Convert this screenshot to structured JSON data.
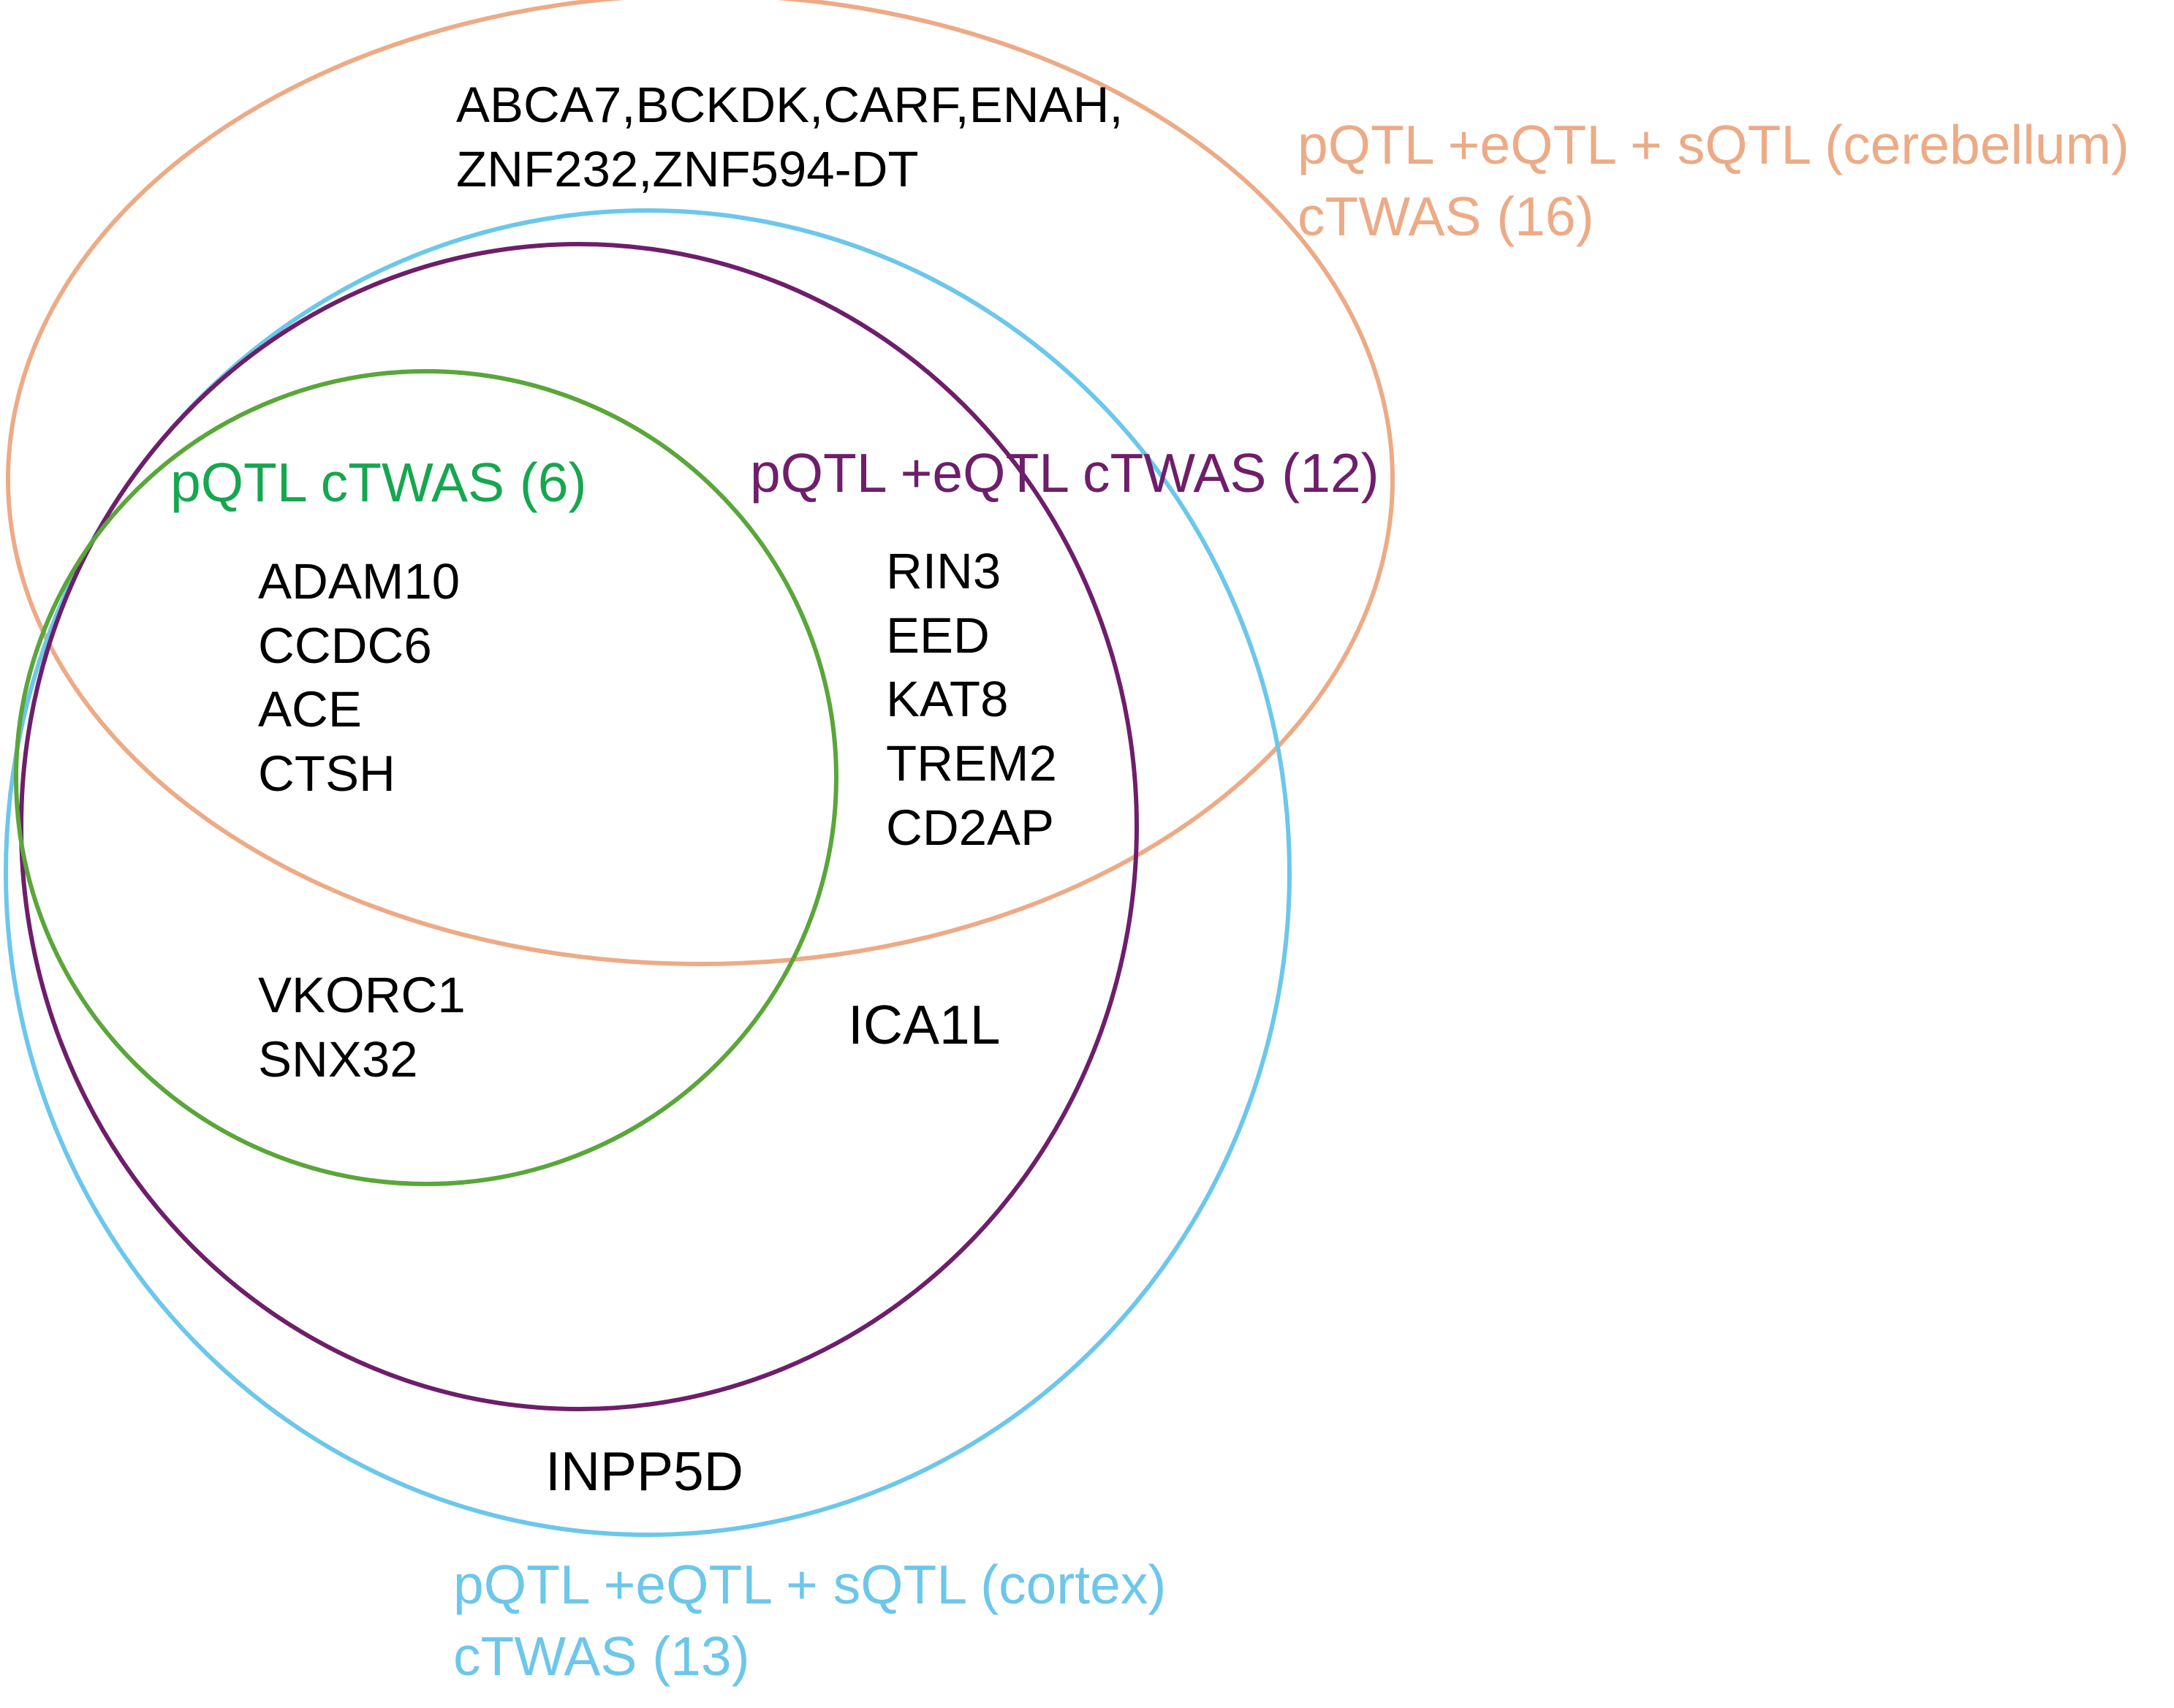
{
  "colors": {
    "cerebellum": "#ecab86",
    "cortex": "#6cc7ea",
    "pqtl_eqtl": "#6e1e6a",
    "pqtl": "#5aa63a",
    "pqtl_label": "#16a650",
    "text": "#000000"
  },
  "sets": {
    "cerebellum": {
      "line1": "pQTL +eQTL + sQTL (cerebellum)",
      "line2": "cTWAS (16)"
    },
    "cortex": {
      "line1": "pQTL +eQTL + sQTL (cortex)",
      "line2": "cTWAS (13)"
    },
    "pqtl_eqtl": {
      "label": "pQTL +eQTL cTWAS (12)"
    },
    "pqtl": {
      "label": "pQTL  cTWAS (6)"
    }
  },
  "regions": {
    "cerebellum_only": [
      "ABCA7,BCKDK,CARF,ENAH,",
      "ZNF232,ZNF594-DT"
    ],
    "all_four": [
      "ADAM10",
      "CCDC6",
      "ACE",
      "CTSH"
    ],
    "pqtl_eqtl_cerebellum_cortex": [
      "RIN3",
      "EED",
      "KAT8",
      "TREM2",
      "CD2AP"
    ],
    "pqtl_cortex": [
      "VKORC1",
      "SNX32"
    ],
    "pqtl_eqtl_cortex": [
      "ICA1L"
    ],
    "cortex_only": [
      "INPP5D"
    ]
  }
}
